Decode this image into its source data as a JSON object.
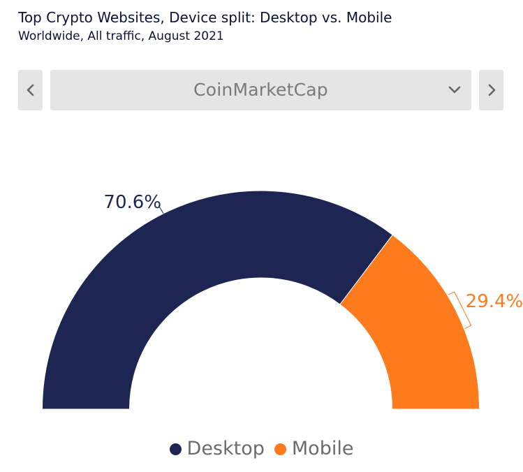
{
  "header": {
    "title": "Top Crypto Websites, Device split: Desktop vs. Mobile",
    "subtitle": "Worldwide, All traffic, August 2021"
  },
  "selector": {
    "selected": "CoinMarketCap",
    "prev_icon": "chevron-left-icon",
    "next_icon": "chevron-right-icon",
    "dropdown_icon": "chevron-down-icon"
  },
  "colors": {
    "desktop": "#1d2552",
    "mobile": "#fd7b1d",
    "nav_bg": "#e5e5e5"
  },
  "chart_data": {
    "type": "pie",
    "variant": "half-donut",
    "title": "",
    "series": [
      {
        "name": "Desktop",
        "value": 70.6,
        "label": "70.6%"
      },
      {
        "name": "Mobile",
        "value": 29.4,
        "label": "29.4%"
      }
    ],
    "legend_position": "bottom"
  },
  "legend": {
    "items": [
      {
        "label": "Desktop"
      },
      {
        "label": "Mobile"
      }
    ]
  }
}
